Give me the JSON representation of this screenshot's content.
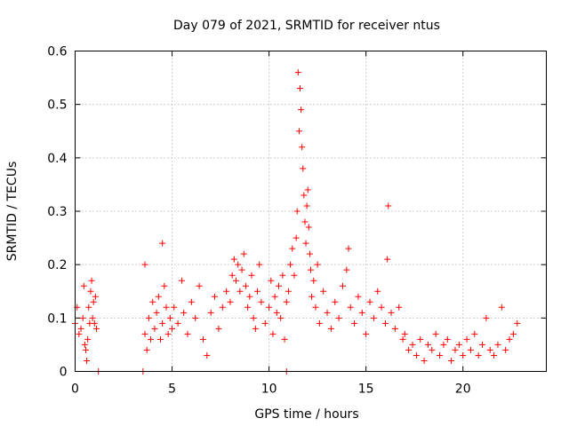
{
  "chart_data": {
    "type": "scatter",
    "title": "Day 079 of 2021, SRMTID for receiver ntus",
    "xlabel": "GPS time / hours",
    "ylabel": "SRMTID / TECUs",
    "xlim": [
      0,
      24.3
    ],
    "ylim": [
      0,
      0.6
    ],
    "xticks": [
      0,
      5,
      10,
      15,
      20
    ],
    "xtick_labels": [
      "0",
      "5",
      "10",
      "15",
      "20"
    ],
    "yticks": [
      0,
      0.1,
      0.2,
      0.3,
      0.4,
      0.5,
      0.6
    ],
    "ytick_labels": [
      "0",
      "0.1",
      "0.2",
      "0.3",
      "0.4",
      "0.5",
      "0.6"
    ],
    "grid": true,
    "marker": "+",
    "color": "#ff0000",
    "series": [
      {
        "name": "SRMTID",
        "points": [
          [
            0.0,
            0.09
          ],
          [
            0.1,
            0.12
          ],
          [
            0.2,
            0.07
          ],
          [
            0.3,
            0.08
          ],
          [
            0.4,
            0.1
          ],
          [
            0.45,
            0.16
          ],
          [
            0.5,
            0.05
          ],
          [
            0.55,
            0.04
          ],
          [
            0.6,
            0.02
          ],
          [
            0.65,
            0.06
          ],
          [
            0.7,
            0.12
          ],
          [
            0.75,
            0.09
          ],
          [
            0.8,
            0.15
          ],
          [
            0.85,
            0.17
          ],
          [
            0.9,
            0.1
          ],
          [
            0.95,
            0.13
          ],
          [
            1.0,
            0.09
          ],
          [
            1.05,
            0.14
          ],
          [
            1.1,
            0.08
          ],
          [
            1.2,
            0.0
          ],
          [
            3.5,
            0.0
          ],
          [
            10.9,
            0.0
          ],
          [
            3.6,
            0.2
          ],
          [
            3.6,
            0.07
          ],
          [
            3.7,
            0.04
          ],
          [
            3.8,
            0.1
          ],
          [
            3.9,
            0.06
          ],
          [
            4.0,
            0.13
          ],
          [
            4.1,
            0.08
          ],
          [
            4.2,
            0.11
          ],
          [
            4.3,
            0.14
          ],
          [
            4.4,
            0.06
          ],
          [
            4.5,
            0.24
          ],
          [
            4.5,
            0.09
          ],
          [
            4.6,
            0.16
          ],
          [
            4.7,
            0.12
          ],
          [
            4.8,
            0.07
          ],
          [
            4.9,
            0.1
          ],
          [
            5.0,
            0.08
          ],
          [
            5.1,
            0.12
          ],
          [
            5.3,
            0.09
          ],
          [
            5.5,
            0.17
          ],
          [
            5.6,
            0.11
          ],
          [
            5.8,
            0.07
          ],
          [
            6.0,
            0.13
          ],
          [
            6.2,
            0.1
          ],
          [
            6.4,
            0.16
          ],
          [
            6.6,
            0.06
          ],
          [
            6.8,
            0.03
          ],
          [
            7.0,
            0.11
          ],
          [
            7.2,
            0.14
          ],
          [
            7.4,
            0.08
          ],
          [
            7.6,
            0.12
          ],
          [
            7.8,
            0.15
          ],
          [
            8.0,
            0.13
          ],
          [
            8.1,
            0.18
          ],
          [
            8.2,
            0.21
          ],
          [
            8.3,
            0.17
          ],
          [
            8.4,
            0.2
          ],
          [
            8.5,
            0.15
          ],
          [
            8.6,
            0.19
          ],
          [
            8.7,
            0.22
          ],
          [
            8.8,
            0.16
          ],
          [
            8.9,
            0.12
          ],
          [
            9.0,
            0.14
          ],
          [
            9.1,
            0.18
          ],
          [
            9.2,
            0.1
          ],
          [
            9.3,
            0.08
          ],
          [
            9.4,
            0.15
          ],
          [
            9.5,
            0.2
          ],
          [
            9.6,
            0.13
          ],
          [
            9.8,
            0.09
          ],
          [
            10.0,
            0.12
          ],
          [
            10.1,
            0.17
          ],
          [
            10.2,
            0.07
          ],
          [
            10.3,
            0.14
          ],
          [
            10.4,
            0.11
          ],
          [
            10.5,
            0.16
          ],
          [
            10.6,
            0.1
          ],
          [
            10.7,
            0.18
          ],
          [
            10.8,
            0.06
          ],
          [
            10.9,
            0.13
          ],
          [
            11.0,
            0.15
          ],
          [
            11.1,
            0.2
          ],
          [
            11.2,
            0.23
          ],
          [
            11.3,
            0.18
          ],
          [
            11.4,
            0.25
          ],
          [
            11.45,
            0.3
          ],
          [
            11.5,
            0.56
          ],
          [
            11.55,
            0.45
          ],
          [
            11.6,
            0.53
          ],
          [
            11.65,
            0.49
          ],
          [
            11.7,
            0.42
          ],
          [
            11.75,
            0.38
          ],
          [
            11.8,
            0.33
          ],
          [
            11.85,
            0.28
          ],
          [
            11.9,
            0.24
          ],
          [
            11.95,
            0.31
          ],
          [
            12.0,
            0.34
          ],
          [
            12.05,
            0.27
          ],
          [
            12.1,
            0.22
          ],
          [
            12.15,
            0.19
          ],
          [
            12.2,
            0.14
          ],
          [
            12.3,
            0.17
          ],
          [
            12.4,
            0.12
          ],
          [
            12.5,
            0.2
          ],
          [
            12.6,
            0.09
          ],
          [
            12.8,
            0.15
          ],
          [
            13.0,
            0.11
          ],
          [
            13.2,
            0.08
          ],
          [
            13.4,
            0.13
          ],
          [
            13.6,
            0.1
          ],
          [
            13.8,
            0.16
          ],
          [
            14.0,
            0.19
          ],
          [
            14.1,
            0.23
          ],
          [
            14.2,
            0.12
          ],
          [
            14.4,
            0.09
          ],
          [
            14.6,
            0.14
          ],
          [
            14.8,
            0.11
          ],
          [
            15.0,
            0.07
          ],
          [
            15.2,
            0.13
          ],
          [
            15.4,
            0.1
          ],
          [
            15.6,
            0.15
          ],
          [
            15.8,
            0.12
          ],
          [
            16.0,
            0.09
          ],
          [
            16.1,
            0.21
          ],
          [
            16.15,
            0.31
          ],
          [
            16.3,
            0.11
          ],
          [
            16.5,
            0.08
          ],
          [
            16.7,
            0.12
          ],
          [
            16.9,
            0.06
          ],
          [
            17.0,
            0.07
          ],
          [
            17.2,
            0.04
          ],
          [
            17.4,
            0.05
          ],
          [
            17.6,
            0.03
          ],
          [
            17.8,
            0.06
          ],
          [
            18.0,
            0.02
          ],
          [
            18.2,
            0.05
          ],
          [
            18.4,
            0.04
          ],
          [
            18.6,
            0.07
          ],
          [
            18.8,
            0.03
          ],
          [
            19.0,
            0.05
          ],
          [
            19.2,
            0.06
          ],
          [
            19.4,
            0.02
          ],
          [
            19.6,
            0.04
          ],
          [
            19.8,
            0.05
          ],
          [
            20.0,
            0.03
          ],
          [
            20.2,
            0.06
          ],
          [
            20.4,
            0.04
          ],
          [
            20.6,
            0.07
          ],
          [
            20.8,
            0.03
          ],
          [
            21.0,
            0.05
          ],
          [
            21.2,
            0.1
          ],
          [
            21.4,
            0.04
          ],
          [
            21.6,
            0.03
          ],
          [
            21.8,
            0.05
          ],
          [
            22.0,
            0.12
          ],
          [
            22.2,
            0.04
          ],
          [
            22.4,
            0.06
          ],
          [
            22.6,
            0.07
          ],
          [
            22.8,
            0.09
          ]
        ]
      }
    ]
  }
}
